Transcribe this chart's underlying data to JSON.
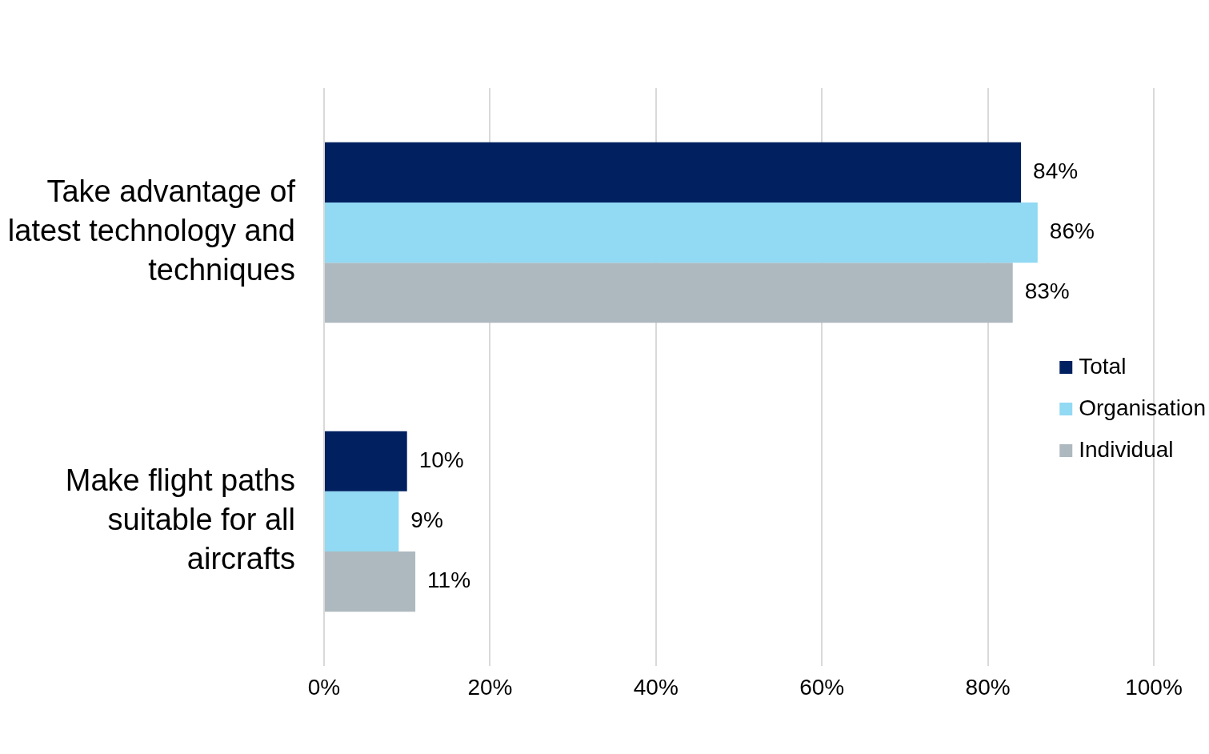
{
  "chart_data": {
    "type": "bar",
    "orientation": "horizontal",
    "categories": [
      "Take advantage of latest technology and techniques",
      "Make flight paths suitable for all aircrafts"
    ],
    "series": [
      {
        "name": "Total",
        "color": "#002060",
        "values": [
          84,
          10
        ],
        "value_labels": [
          "84%",
          "10%"
        ]
      },
      {
        "name": "Organisation",
        "color": "#92d9f3",
        "values": [
          86,
          9
        ],
        "value_labels": [
          "86%",
          "9%"
        ]
      },
      {
        "name": "Individual",
        "color": "#adb9bf",
        "values": [
          83,
          11
        ],
        "value_labels": [
          "83%",
          "11%"
        ]
      }
    ],
    "xlim": [
      0,
      100
    ],
    "xticks": [
      {
        "value": 0,
        "label": "0%"
      },
      {
        "value": 20,
        "label": "20%"
      },
      {
        "value": 40,
        "label": "40%"
      },
      {
        "value": 60,
        "label": "60%"
      },
      {
        "value": 80,
        "label": "80%"
      },
      {
        "value": 100,
        "label": "100%"
      }
    ],
    "grid": "x",
    "legend": "right"
  }
}
